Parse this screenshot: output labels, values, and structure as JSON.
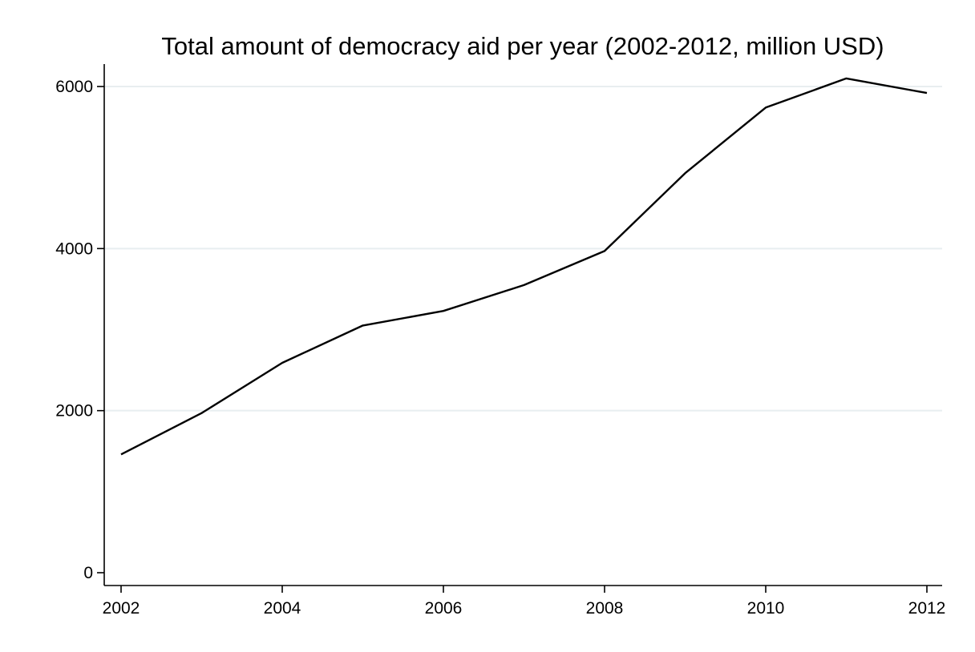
{
  "chart_data": {
    "type": "line",
    "title": "Total amount of democracy aid per year (2002-2012, million USD)",
    "xlabel": "",
    "ylabel": "",
    "x": [
      2002,
      2003,
      2004,
      2005,
      2006,
      2007,
      2008,
      2009,
      2010,
      2011,
      2012
    ],
    "series": [
      {
        "values": [
          1460,
          1970,
          2590,
          3050,
          3230,
          3550,
          3970,
          4930,
          5740,
          6100,
          5920
        ],
        "color": "#000000"
      }
    ],
    "xlim": [
      2002,
      2012
    ],
    "ylim": [
      0,
      6100
    ],
    "x_ticks": [
      2002,
      2004,
      2006,
      2008,
      2010,
      2012
    ],
    "y_ticks": [
      0,
      2000,
      4000,
      6000
    ],
    "grid": true,
    "colors": {
      "background": "#ffffff",
      "grid": "#e8eef0",
      "axis": "#000000"
    }
  }
}
